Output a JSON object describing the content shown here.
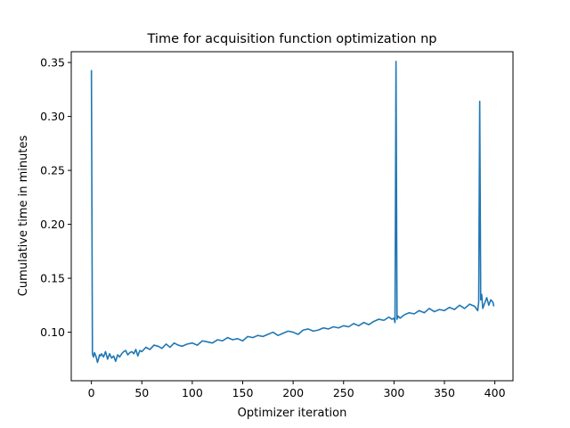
{
  "chart_data": {
    "type": "line",
    "title": "Time for acquisition function optimization np",
    "xlabel": "Optimizer iteration",
    "ylabel": "Cumulative time in minutes",
    "xlim": [
      -20,
      418
    ],
    "ylim": [
      0.055,
      0.36
    ],
    "xticks": [
      0,
      50,
      100,
      150,
      200,
      250,
      300,
      350,
      400
    ],
    "yticks": [
      0.1,
      0.15,
      0.2,
      0.25,
      0.3,
      0.35
    ],
    "grid": false,
    "legend": "none",
    "series": [
      {
        "color": "#1f77b4",
        "x": [
          0,
          1,
          2,
          3,
          4,
          5,
          6,
          7,
          8,
          9,
          10,
          12,
          14,
          16,
          18,
          20,
          22,
          24,
          26,
          28,
          30,
          32,
          34,
          36,
          38,
          40,
          42,
          44,
          46,
          48,
          50,
          54,
          58,
          62,
          66,
          70,
          74,
          78,
          82,
          86,
          90,
          95,
          100,
          105,
          110,
          115,
          120,
          125,
          130,
          135,
          140,
          145,
          150,
          155,
          160,
          165,
          170,
          175,
          180,
          185,
          190,
          195,
          200,
          205,
          210,
          215,
          220,
          225,
          230,
          235,
          240,
          245,
          250,
          255,
          260,
          265,
          270,
          275,
          280,
          285,
          290,
          295,
          298,
          300,
          301,
          302,
          303,
          304,
          306,
          310,
          315,
          320,
          325,
          330,
          335,
          340,
          345,
          350,
          355,
          360,
          365,
          370,
          375,
          380,
          383,
          384,
          385,
          386,
          387,
          388,
          390,
          392,
          394,
          396,
          398,
          399
        ],
        "y": [
          0.343,
          0.08,
          0.077,
          0.081,
          0.079,
          0.076,
          0.072,
          0.075,
          0.079,
          0.078,
          0.08,
          0.077,
          0.082,
          0.075,
          0.08,
          0.076,
          0.078,
          0.073,
          0.079,
          0.077,
          0.08,
          0.082,
          0.083,
          0.079,
          0.081,
          0.082,
          0.08,
          0.084,
          0.078,
          0.083,
          0.082,
          0.086,
          0.084,
          0.088,
          0.087,
          0.085,
          0.089,
          0.086,
          0.09,
          0.088,
          0.087,
          0.089,
          0.09,
          0.088,
          0.092,
          0.091,
          0.09,
          0.093,
          0.092,
          0.095,
          0.093,
          0.094,
          0.092,
          0.096,
          0.095,
          0.097,
          0.096,
          0.098,
          0.1,
          0.097,
          0.099,
          0.101,
          0.1,
          0.098,
          0.102,
          0.103,
          0.101,
          0.102,
          0.104,
          0.103,
          0.105,
          0.104,
          0.106,
          0.105,
          0.108,
          0.106,
          0.109,
          0.107,
          0.11,
          0.112,
          0.111,
          0.114,
          0.112,
          0.113,
          0.109,
          0.351,
          0.112,
          0.115,
          0.113,
          0.116,
          0.118,
          0.117,
          0.12,
          0.118,
          0.122,
          0.119,
          0.121,
          0.12,
          0.123,
          0.121,
          0.125,
          0.122,
          0.126,
          0.124,
          0.12,
          0.128,
          0.314,
          0.13,
          0.135,
          0.122,
          0.127,
          0.132,
          0.125,
          0.13,
          0.128,
          0.124
        ]
      }
    ]
  }
}
